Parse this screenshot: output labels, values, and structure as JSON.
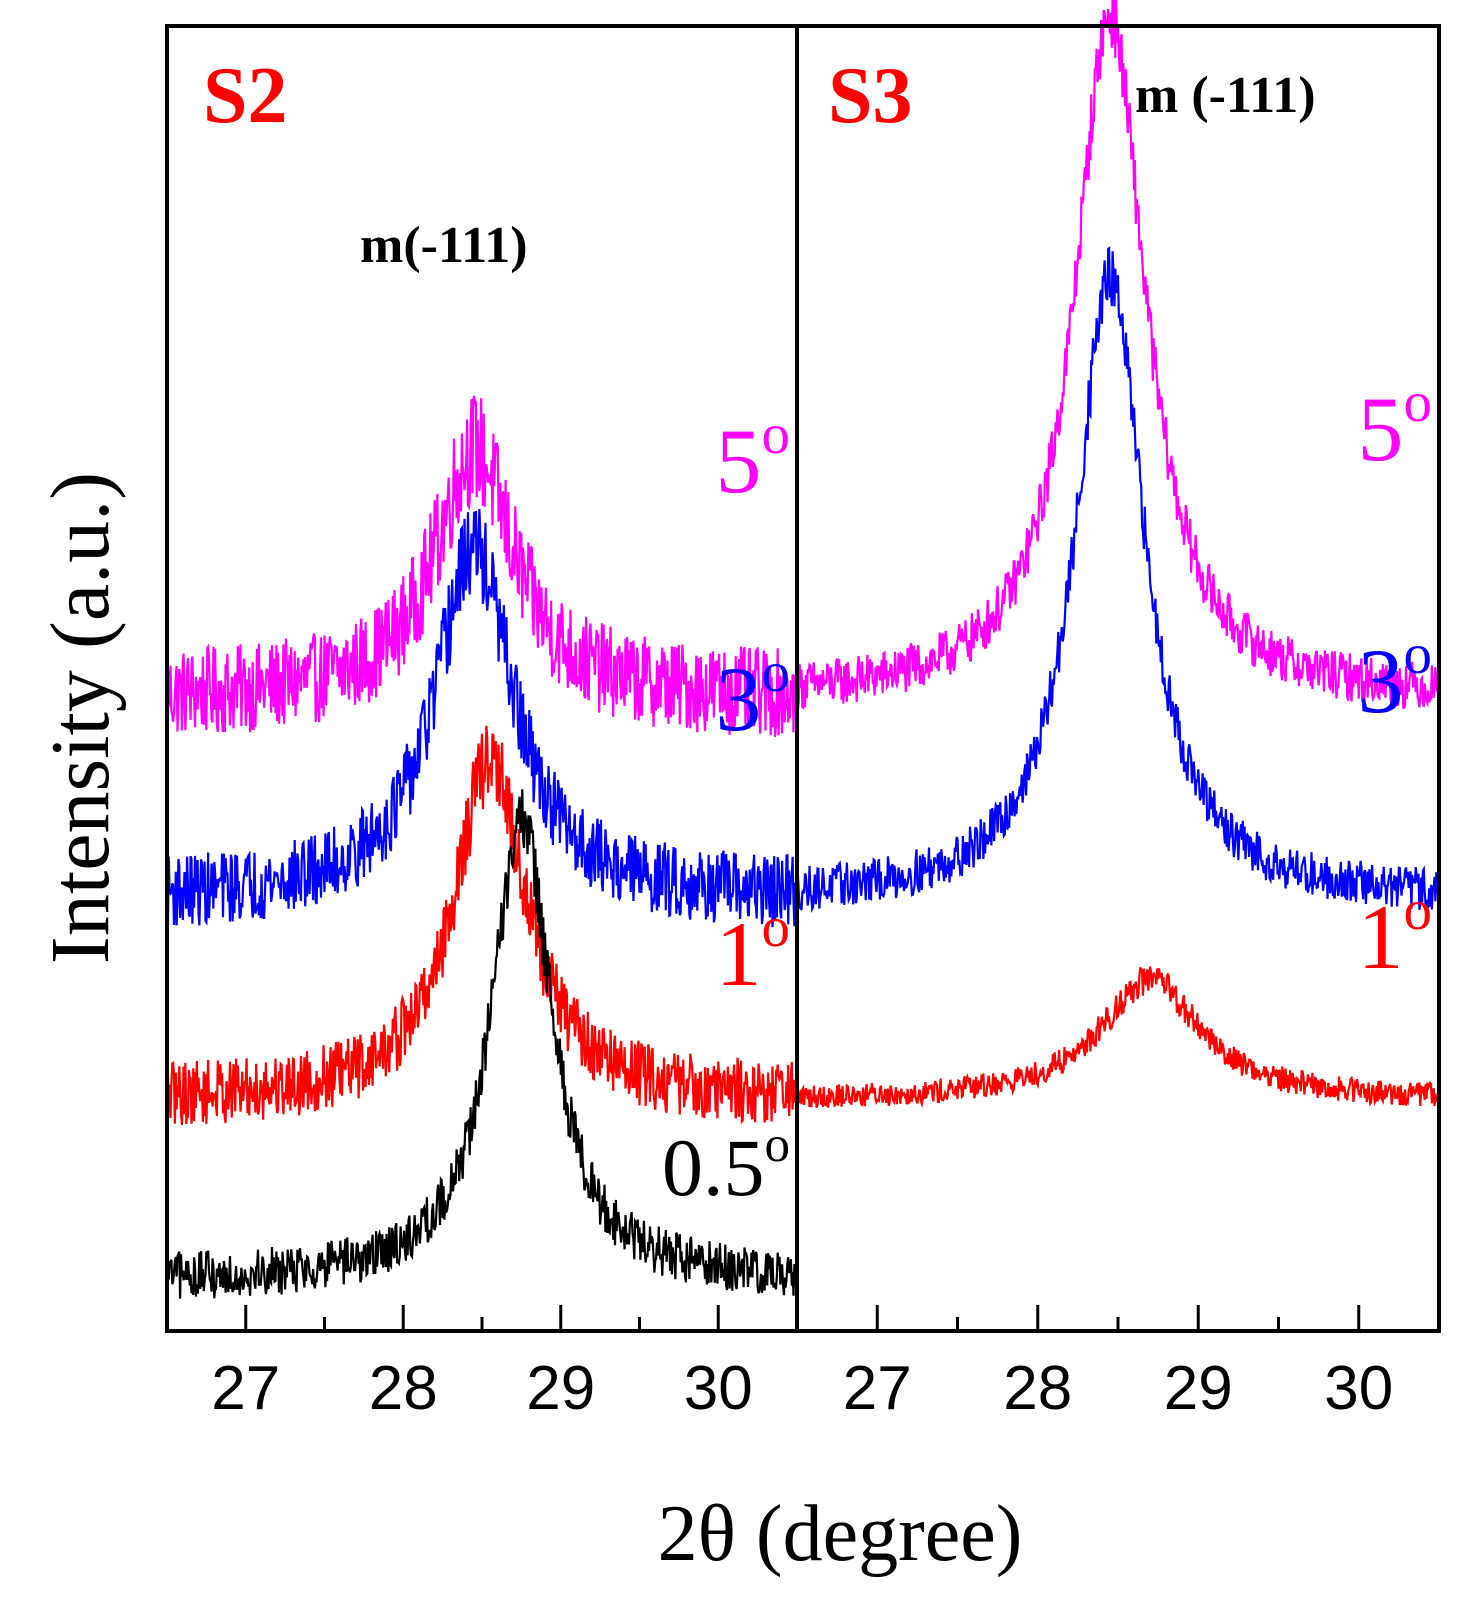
{
  "figure": {
    "ylabel": "Intensity (a.u.)",
    "xlabel": "2θ (degree)"
  },
  "colors": {
    "0.5": "#000000",
    "1": "#ff0000",
    "3": "#0000ff",
    "5": "#ff00ff"
  },
  "chart_data": [
    {
      "type": "line",
      "panel_label": "S2",
      "peak_label": "m(-111)",
      "xlim": [
        26.5,
        30.5
      ],
      "xticks": [
        27,
        28,
        29,
        30
      ],
      "xtick_labels": [
        "27",
        "28",
        "29",
        "30"
      ],
      "xlabel": "2θ (degree)",
      "ylabel": "Intensity (a.u.)",
      "series": [
        {
          "name": "5°",
          "tilt_label_base": "5",
          "tilt_label_sup": "o",
          "color_key": "5",
          "peak_2theta": 28.45,
          "baseline": 31.5,
          "peak_height": 12.5,
          "peak_width": 0.3,
          "noise": 2.2
        },
        {
          "name": "3°",
          "tilt_label_base": "3",
          "tilt_label_sup": "o",
          "color_key": "3",
          "peak_2theta": 28.45,
          "baseline": 21.5,
          "peak_height": 17.5,
          "peak_width": 0.3,
          "noise": 1.8
        },
        {
          "name": "1°",
          "tilt_label_base": "1",
          "tilt_label_sup": "o",
          "color_key": "1",
          "peak_2theta": 28.55,
          "baseline": 11.5,
          "peak_height": 17,
          "peak_width": 0.28,
          "noise": 1.6
        },
        {
          "name": "0.5°",
          "tilt_label_base": "0.5",
          "tilt_label_sup": "o",
          "color_key": "0.5",
          "peak_2theta": 28.75,
          "baseline": 2.5,
          "peak_height": 23,
          "peak_width": 0.23,
          "noise": 1.2
        }
      ]
    },
    {
      "type": "line",
      "panel_label": "S3",
      "peak_label": "m (-111)",
      "xlim": [
        26.5,
        30.5
      ],
      "xticks": [
        27,
        28,
        29,
        30
      ],
      "xtick_labels": [
        "27",
        "28",
        "29",
        "30"
      ],
      "xlabel": "2θ (degree)",
      "ylabel": "Intensity (a.u.)",
      "series": [
        {
          "name": "5°",
          "tilt_label_base": "5",
          "tilt_label_sup": "o",
          "color_key": "5",
          "peak_2theta": 28.45,
          "baseline": 31.5,
          "peak_height": 34,
          "peak_width": 0.27,
          "noise": 1.2
        },
        {
          "name": "3°",
          "tilt_label_base": "3",
          "tilt_label_sup": "o",
          "color_key": "3",
          "peak_2theta": 28.45,
          "baseline": 21.5,
          "peak_height": 31,
          "peak_width": 0.26,
          "noise": 1.1
        },
        {
          "name": "1°",
          "tilt_label_base": "1",
          "tilt_label_sup": "o",
          "color_key": "1",
          "peak_2theta": 28.7,
          "baseline": 11.5,
          "peak_height": 6,
          "peak_width": 0.38,
          "noise": 0.6
        }
      ]
    }
  ]
}
